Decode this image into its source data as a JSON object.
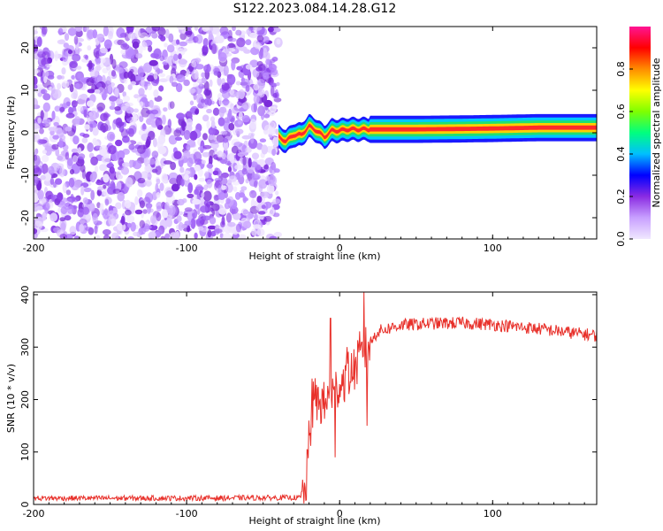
{
  "title": "S122.2023.084.14.28.G12",
  "chart_data": [
    {
      "type": "heatmap",
      "xlabel": "Height of straight line (km)",
      "ylabel": "Frequency (Hz)",
      "xlim": [
        -200,
        168
      ],
      "ylim": [
        -25,
        25
      ],
      "xticks": [
        -200,
        -100,
        0,
        100
      ],
      "yticks": [
        -20,
        -10,
        0,
        10,
        20
      ],
      "colorbar": {
        "label": "Normalized spectral amplitude",
        "range": [
          0,
          1
        ],
        "ticks": [
          "0.0",
          "0.2",
          "0.4",
          "0.6",
          "0.8"
        ],
        "colors": [
          "#f0e8ff",
          "#c8a0ff",
          "#8a2be2",
          "#0000ff",
          "#00bfff",
          "#00ff7f",
          "#7fff00",
          "#ffff00",
          "#ff8c00",
          "#ff0000",
          "#ff1493"
        ]
      },
      "noise_region_x": [
        -200,
        -40
      ],
      "signal_center_hz": [
        {
          "x": -40,
          "y": -1.0
        },
        {
          "x": -35,
          "y": -2.0
        },
        {
          "x": -30,
          "y": -0.5
        },
        {
          "x": -25,
          "y": -0.5
        },
        {
          "x": -20,
          "y": 1.5
        },
        {
          "x": -15,
          "y": 0.5
        },
        {
          "x": -10,
          "y": -1.0
        },
        {
          "x": -5,
          "y": 0.5
        },
        {
          "x": 0,
          "y": 0.5
        },
        {
          "x": 5,
          "y": 0.8
        },
        {
          "x": 10,
          "y": 0.8
        },
        {
          "x": 20,
          "y": 0.8
        },
        {
          "x": 50,
          "y": 0.8
        },
        {
          "x": 80,
          "y": 0.9
        },
        {
          "x": 100,
          "y": 1.0
        },
        {
          "x": 130,
          "y": 1.2
        },
        {
          "x": 168,
          "y": 1.2
        }
      ]
    },
    {
      "type": "line",
      "xlabel": "Height of straight line (km)",
      "ylabel": "SNR (10 * v/v)",
      "xlim": [
        -200,
        168
      ],
      "ylim": [
        0,
        405
      ],
      "xticks": [
        -200,
        -100,
        0,
        100
      ],
      "yticks": [
        0,
        100,
        200,
        300,
        400
      ],
      "color": "#e8302a",
      "profile": [
        {
          "x": -200,
          "y": 12
        },
        {
          "x": -100,
          "y": 12
        },
        {
          "x": -25,
          "y": 13
        },
        {
          "x": -22,
          "y": 30
        },
        {
          "x": -20,
          "y": 120
        },
        {
          "x": -17,
          "y": 200
        },
        {
          "x": -10,
          "y": 190
        },
        {
          "x": 0,
          "y": 230
        },
        {
          "x": 10,
          "y": 260
        },
        {
          "x": 18,
          "y": 300
        },
        {
          "x": 25,
          "y": 330
        },
        {
          "x": 40,
          "y": 342
        },
        {
          "x": 60,
          "y": 345
        },
        {
          "x": 80,
          "y": 346
        },
        {
          "x": 100,
          "y": 343
        },
        {
          "x": 130,
          "y": 335
        },
        {
          "x": 150,
          "y": 328
        },
        {
          "x": 168,
          "y": 322
        }
      ],
      "spikes": [
        {
          "x": -18,
          "y": 240
        },
        {
          "x": -6,
          "y": 355
        },
        {
          "x": -3,
          "y": 90
        },
        {
          "x": 5,
          "y": 300
        },
        {
          "x": 13,
          "y": 330
        },
        {
          "x": 16,
          "y": 405
        },
        {
          "x": 18,
          "y": 150
        }
      ]
    }
  ]
}
